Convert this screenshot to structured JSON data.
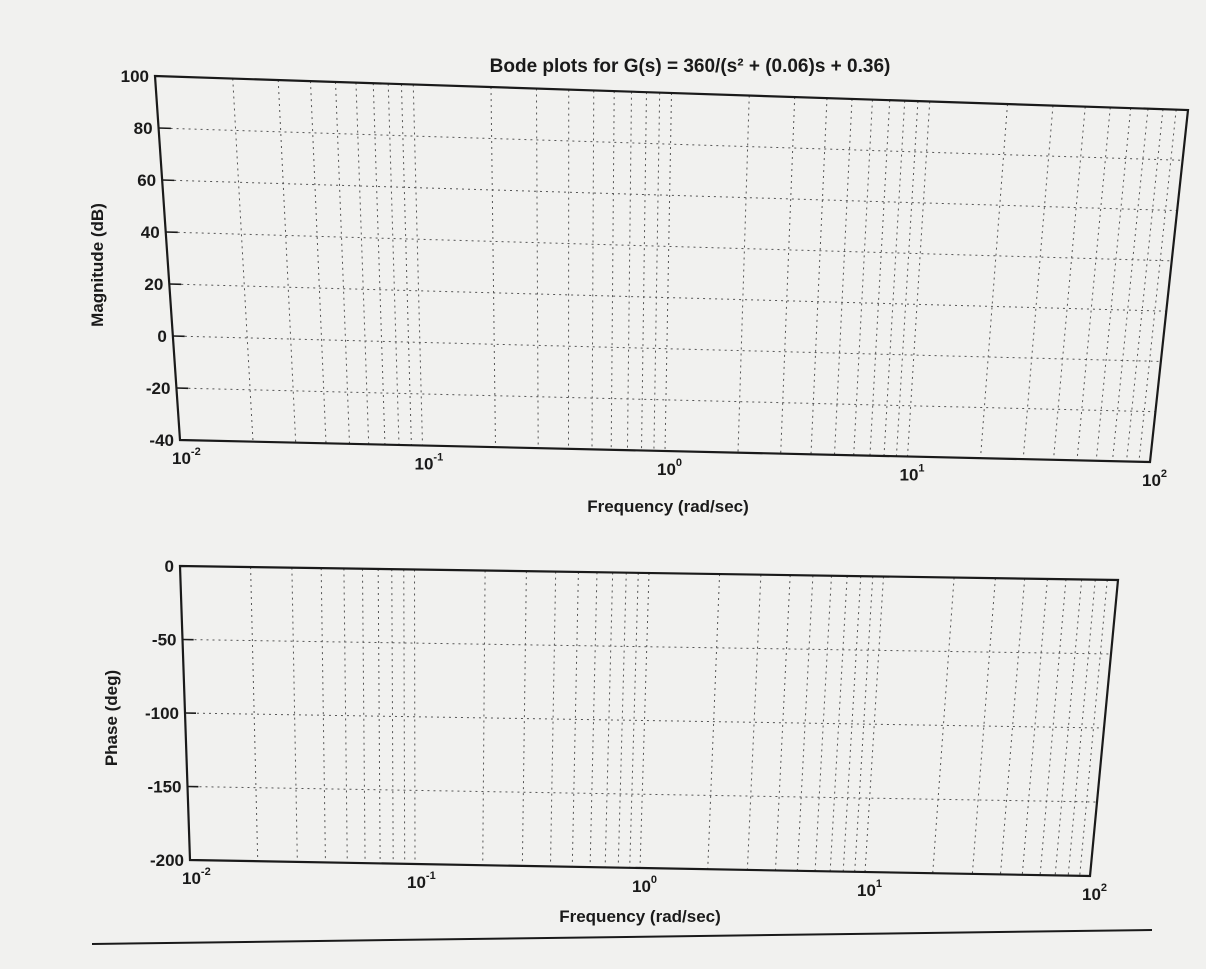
{
  "chart_data": [
    {
      "type": "line",
      "panel": "magnitude",
      "title": "Bode plots for G(s) = 360/(s² + (0.06)s + 0.36)",
      "xlabel": "Frequency (rad/sec)",
      "ylabel": "Magnitude (dB)",
      "xscale": "log",
      "xlim": [
        0.01,
        100
      ],
      "ylim": [
        -40,
        100
      ],
      "xticks": [
        {
          "base": "10",
          "exp": "-2"
        },
        {
          "base": "10",
          "exp": "-1"
        },
        {
          "base": "10",
          "exp": "0"
        },
        {
          "base": "10",
          "exp": "1"
        },
        {
          "base": "10",
          "exp": "2"
        }
      ],
      "yticks": [
        "100",
        "80",
        "60",
        "40",
        "20",
        "0",
        "-20",
        "-40"
      ],
      "grid": true,
      "series": []
    },
    {
      "type": "line",
      "panel": "phase",
      "title": "",
      "xlabel": "Frequency (rad/sec)",
      "ylabel": "Phase (deg)",
      "xscale": "log",
      "xlim": [
        0.01,
        100
      ],
      "ylim": [
        -200,
        0
      ],
      "xticks": [
        {
          "base": "10",
          "exp": "-2"
        },
        {
          "base": "10",
          "exp": "-1"
        },
        {
          "base": "10",
          "exp": "0"
        },
        {
          "base": "10",
          "exp": "1"
        },
        {
          "base": "10",
          "exp": "2"
        }
      ],
      "yticks": [
        "0",
        "-50",
        "-100",
        "-150",
        "-200"
      ],
      "grid": true,
      "series": []
    }
  ]
}
